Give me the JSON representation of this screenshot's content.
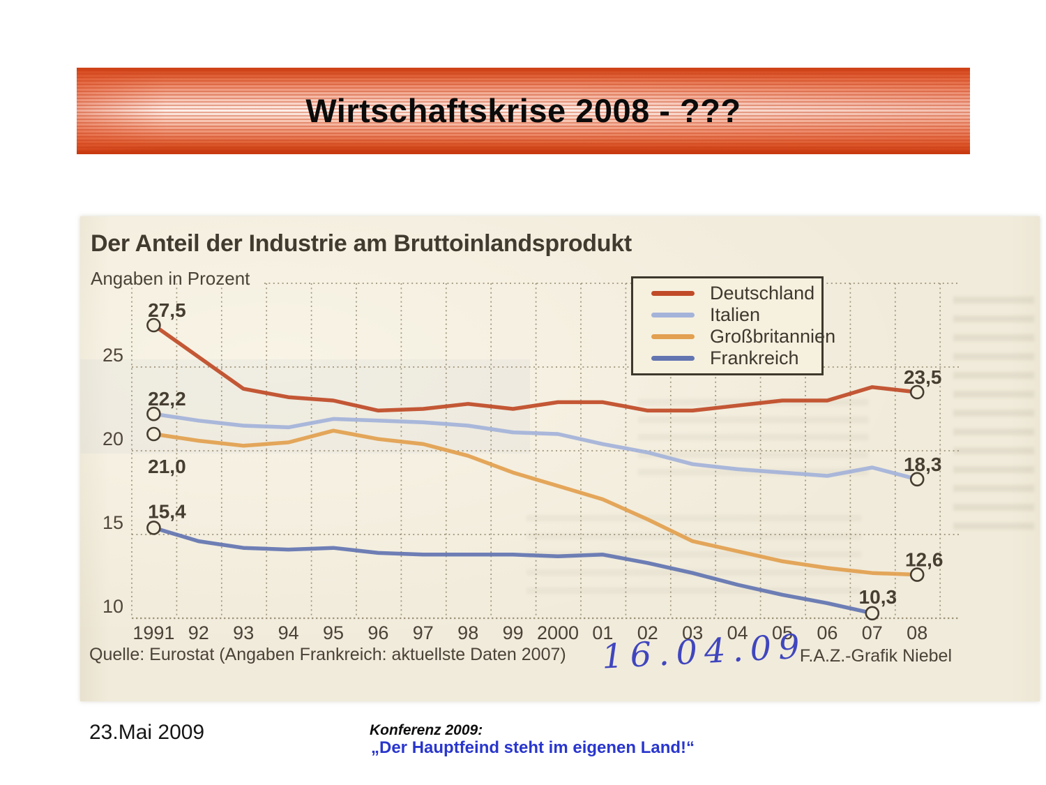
{
  "slide": {
    "title": "Wirtschaftskrise 2008 - ???",
    "footer_date": "23.Mai 2009",
    "conference_label": "Konferenz 2009:",
    "conference_quote": "„Der Hauptfeind steht im eigenen Land!“"
  },
  "clipping": {
    "source": "Quelle: Eurostat (Angaben Frankreich: aktuellste Daten 2007)",
    "credit": "F.A.Z.-Grafik Niebel",
    "handwritten_date": "16.04.09"
  },
  "chart_data": {
    "type": "line",
    "title": "Der Anteil der Industrie am Bruttoinlandsprodukt",
    "subtitle": "Angaben in Prozent",
    "x": [
      1991,
      1992,
      1993,
      1994,
      1995,
      1996,
      1997,
      1998,
      1999,
      2000,
      2001,
      2002,
      2003,
      2004,
      2005,
      2006,
      2007,
      2008
    ],
    "x_tick_labels": [
      "1991",
      "92",
      "93",
      "94",
      "95",
      "96",
      "97",
      "98",
      "99",
      "2000",
      "01",
      "02",
      "03",
      "04",
      "05",
      "06",
      "07",
      "08"
    ],
    "ylim": [
      10,
      30
    ],
    "ygrid": [
      30,
      25,
      20,
      15,
      10
    ],
    "yticks": [
      "25",
      "20",
      "15",
      "10"
    ],
    "grid": "dotted",
    "legend_position": "top-right",
    "unit": "percent of GDP",
    "series": [
      {
        "name": "Deutschland",
        "color": "#c04b28",
        "values": [
          27.5,
          25.6,
          23.7,
          23.2,
          23.0,
          22.4,
          22.5,
          22.8,
          22.5,
          22.9,
          22.9,
          22.4,
          22.4,
          22.7,
          23.0,
          23.0,
          23.8,
          23.5
        ],
        "start_label": "27,5",
        "end_label": "23,5"
      },
      {
        "name": "Italien",
        "color": "#a4b3d9",
        "values": [
          22.2,
          21.8,
          21.5,
          21.4,
          21.9,
          21.8,
          21.7,
          21.5,
          21.1,
          21.0,
          20.4,
          19.9,
          19.2,
          18.9,
          18.7,
          18.5,
          19.0,
          18.3
        ],
        "start_label": "22,2",
        "end_label": "18,3"
      },
      {
        "name": "Großbritannien",
        "color": "#e2a050",
        "values": [
          21.0,
          20.6,
          20.3,
          20.5,
          21.2,
          20.7,
          20.4,
          19.7,
          18.7,
          17.9,
          17.1,
          15.9,
          14.6,
          14.0,
          13.4,
          13.0,
          12.7,
          12.6
        ],
        "start_label": "21,0",
        "end_label": "12,6"
      },
      {
        "name": "Frankreich",
        "color": "#6375b1",
        "values": [
          15.4,
          14.6,
          14.2,
          14.1,
          14.2,
          13.9,
          13.8,
          13.8,
          13.8,
          13.7,
          13.8,
          13.3,
          12.7,
          12.0,
          11.4,
          10.9,
          10.3
        ],
        "start_label": "15,4",
        "end_label": "10,3"
      }
    ]
  }
}
